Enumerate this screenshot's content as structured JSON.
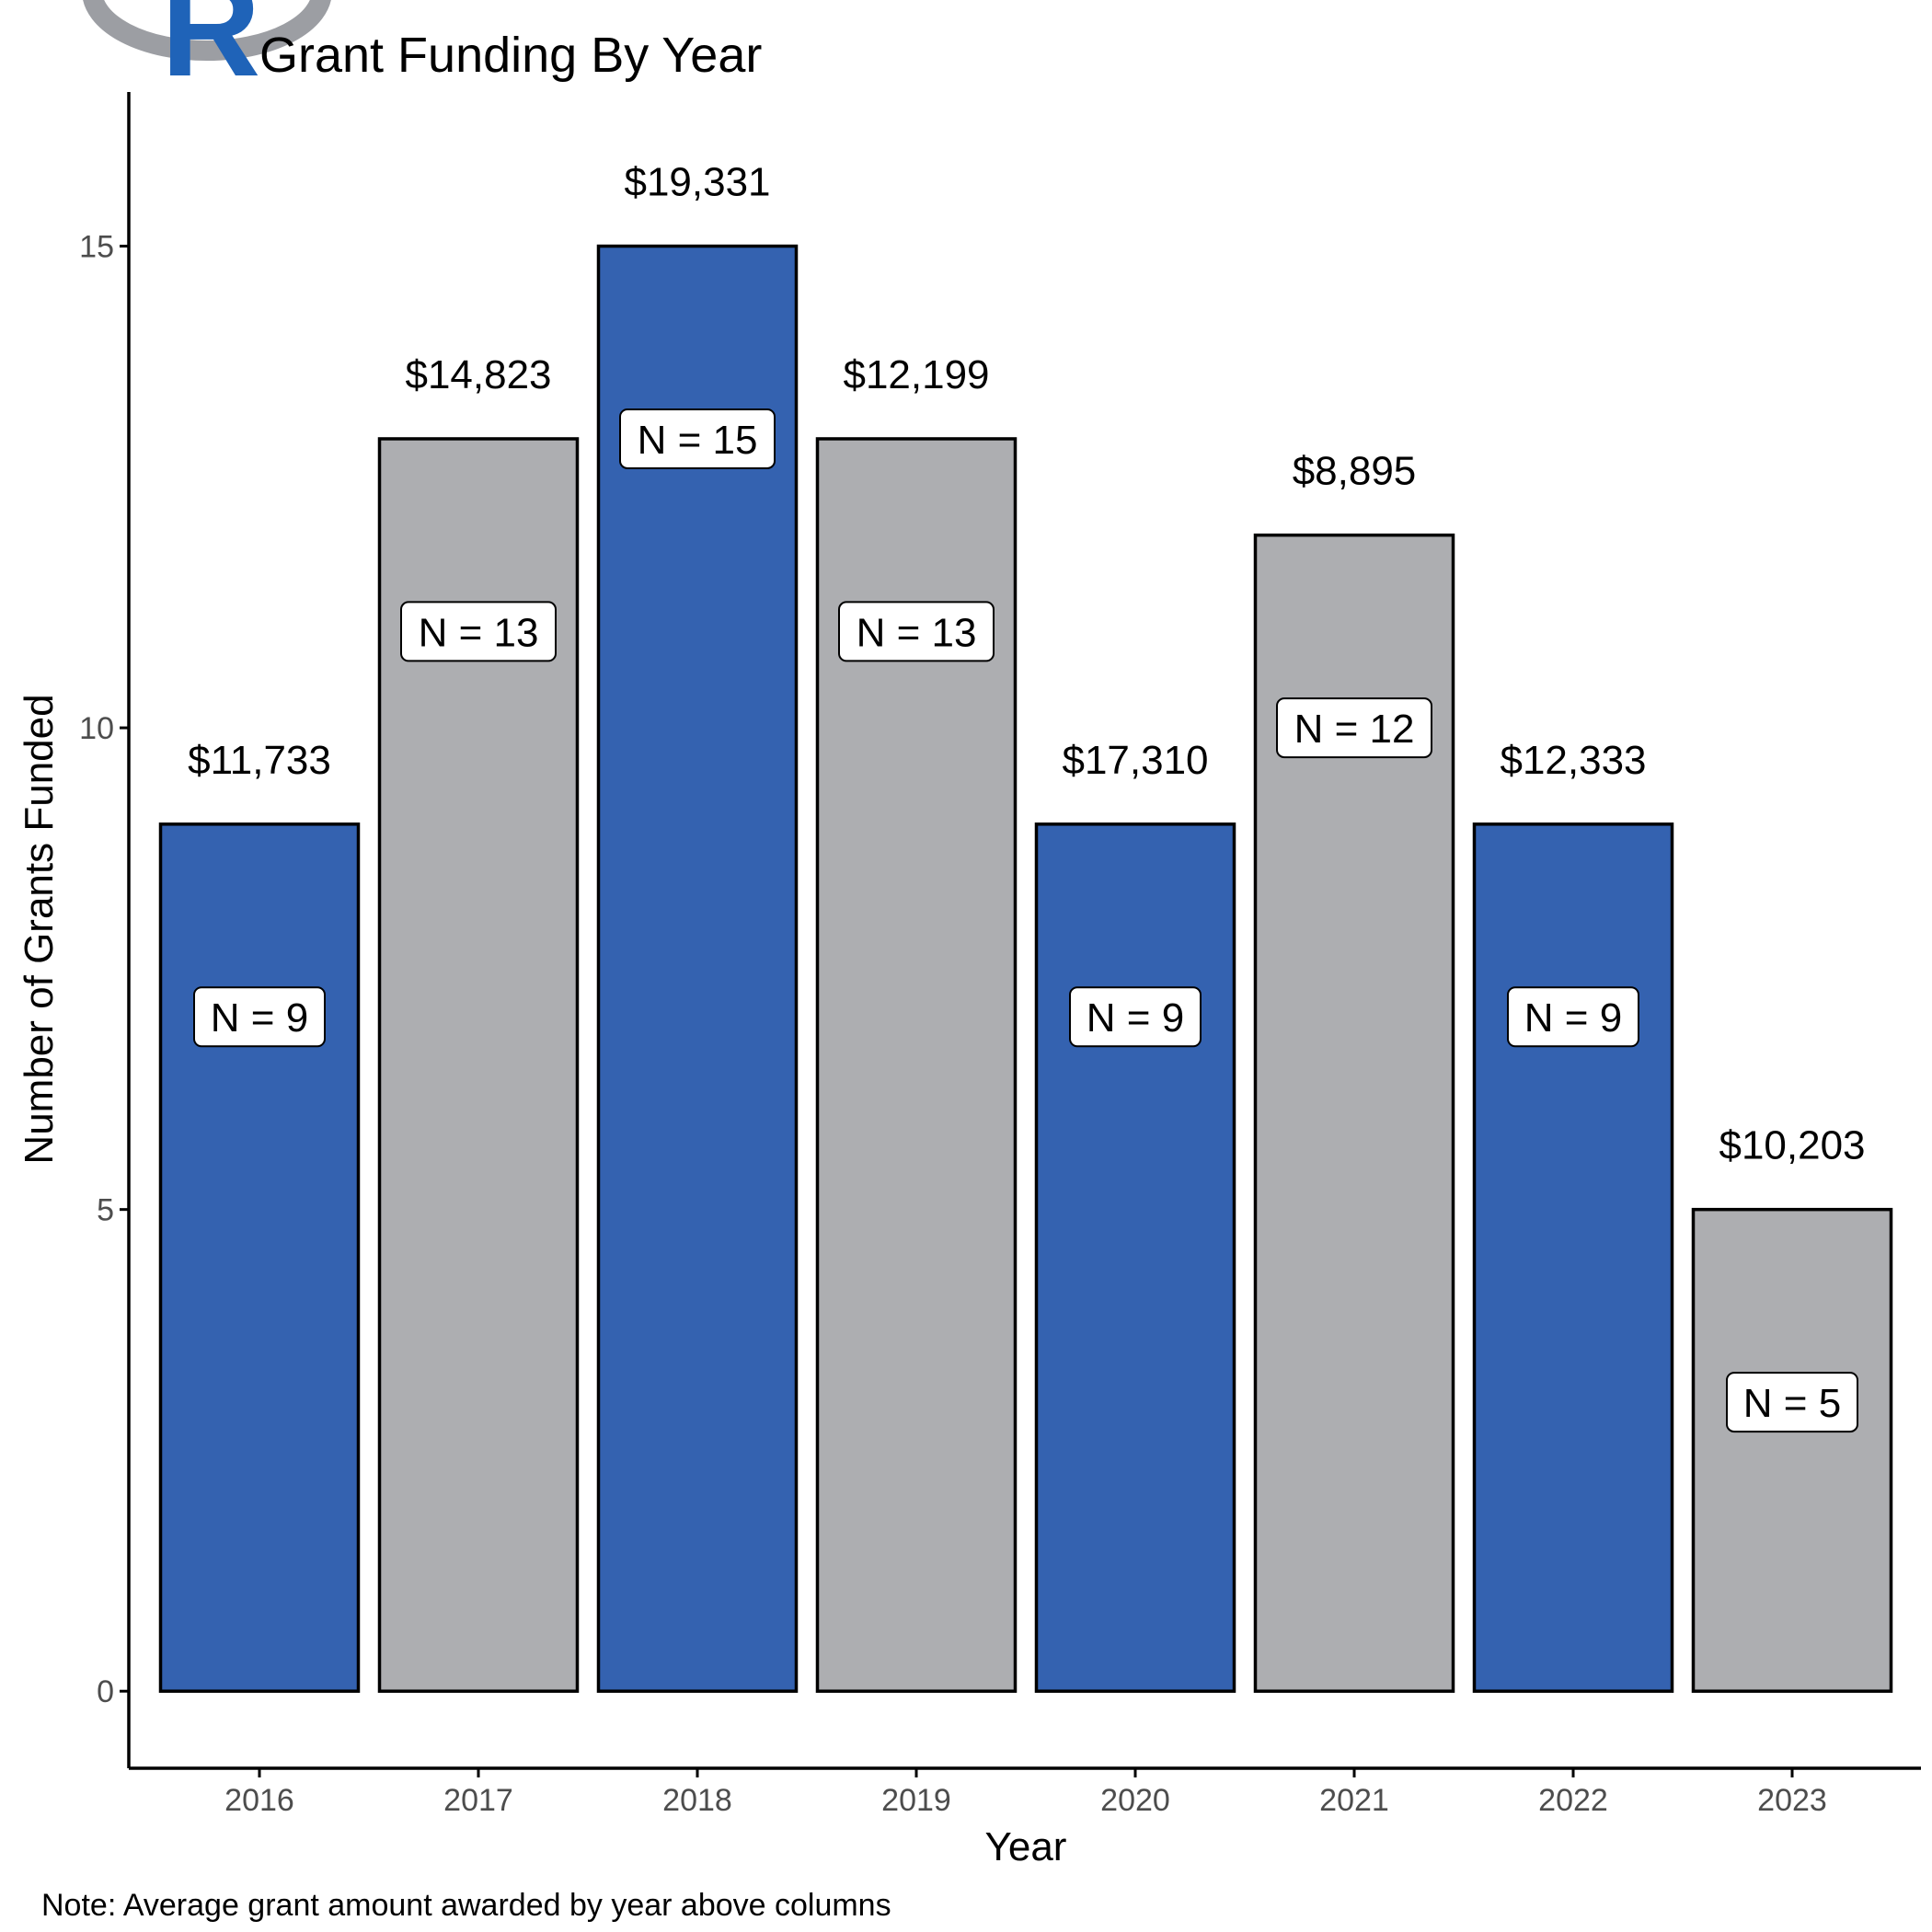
{
  "chart_data": {
    "type": "bar",
    "title": "Grant Funding By Year",
    "xlabel": "Year",
    "ylabel": "Number of Grants Funded",
    "caption": "Note: Average grant amount awarded by year above columns",
    "categories": [
      "2016",
      "2017",
      "2018",
      "2019",
      "2020",
      "2021",
      "2022",
      "2023"
    ],
    "values": [
      9,
      13,
      15,
      13,
      9,
      12,
      9,
      5
    ],
    "count_labels": [
      "N = 9",
      "N = 13",
      "N = 15",
      "N = 13",
      "N = 9",
      "N = 12",
      "N = 9",
      "N = 5"
    ],
    "amount_labels": [
      "$11,733",
      "$14,823",
      "$19,331",
      "$12,199",
      "$17,310",
      "$8,895",
      "$12,333",
      "$10,203"
    ],
    "y_ticks": [
      0,
      5,
      10,
      15
    ],
    "y_tick_labels": [
      "0",
      "5",
      "10",
      "15"
    ],
    "ylim": [
      -0.8,
      16.6
    ],
    "grid": false,
    "legend": "none",
    "bar_colors": [
      "#3462b0",
      "#adaeb1",
      "#3462b0",
      "#adaeb1",
      "#3462b0",
      "#adaeb1",
      "#3462b0",
      "#adaeb1"
    ]
  },
  "logo": {
    "letter": "R",
    "icon": "r-logo-icon",
    "color": "#1f63b8",
    "ring_color": "#9c9ea3"
  }
}
